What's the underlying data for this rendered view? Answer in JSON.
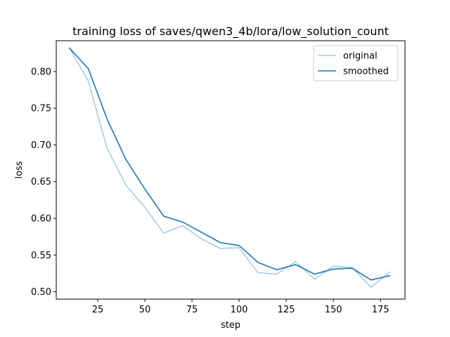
{
  "chart_data": {
    "type": "line",
    "title": "training loss of saves/qwen3_4b/lora/low_solution_count",
    "xlabel": "step",
    "ylabel": "loss",
    "xlim": [
      3,
      188
    ],
    "ylim": [
      0.49,
      0.842
    ],
    "xticks": [
      25,
      50,
      75,
      100,
      125,
      150,
      175
    ],
    "yticks": [
      0.5,
      0.55,
      0.6,
      0.65,
      0.7,
      0.75,
      0.8
    ],
    "ytick_labels": [
      "0.50",
      "0.55",
      "0.60",
      "0.65",
      "0.70",
      "0.75",
      "0.80"
    ],
    "grid": false,
    "legend_position": "upper right",
    "series": [
      {
        "name": "original",
        "color": "#a6cee3",
        "x": [
          10,
          20,
          30,
          40,
          50,
          60,
          70,
          80,
          90,
          100,
          110,
          120,
          130,
          140,
          150,
          160,
          170,
          180
        ],
        "y": [
          0.832,
          0.787,
          0.695,
          0.645,
          0.615,
          0.58,
          0.59,
          0.572,
          0.559,
          0.56,
          0.526,
          0.524,
          0.541,
          0.517,
          0.535,
          0.533,
          0.506,
          0.527
        ]
      },
      {
        "name": "smoothed",
        "color": "#1f78b4",
        "x": [
          10,
          20,
          30,
          40,
          50,
          60,
          70,
          80,
          90,
          100,
          110,
          120,
          130,
          140,
          150,
          160,
          170,
          180
        ],
        "y": [
          0.832,
          0.804,
          0.735,
          0.68,
          0.64,
          0.603,
          0.595,
          0.581,
          0.567,
          0.563,
          0.54,
          0.53,
          0.537,
          0.524,
          0.531,
          0.532,
          0.516,
          0.522
        ]
      }
    ]
  }
}
